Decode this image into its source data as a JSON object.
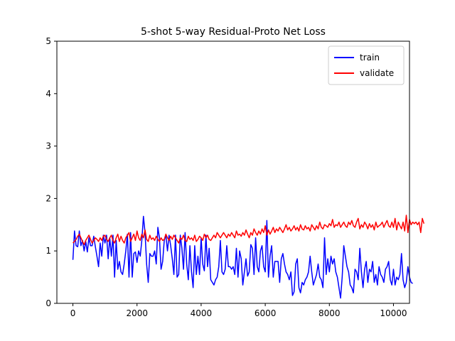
{
  "chart_data": {
    "type": "line",
    "title": "5-shot 5-way Residual-Proto Net Loss",
    "xlabel": "",
    "ylabel": "",
    "xlim": [
      -500,
      10500
    ],
    "ylim": [
      0,
      5
    ],
    "xticks": [
      0,
      2000,
      4000,
      6000,
      8000,
      10000
    ],
    "yticks": [
      0,
      1,
      2,
      3,
      4,
      5
    ],
    "grid": false,
    "legend_position": "top-right",
    "x_step": 50,
    "series": [
      {
        "name": "train",
        "color": "#0000ff",
        "values": [
          0.83,
          1.38,
          1.1,
          1.08,
          1.38,
          1.1,
          1.2,
          1.0,
          1.18,
          0.98,
          1.25,
          1.1,
          1.1,
          1.28,
          1.08,
          0.9,
          0.7,
          1.15,
          0.9,
          1.3,
          1.15,
          1.3,
          0.85,
          1.25,
          0.9,
          1.3,
          0.5,
          1.2,
          0.65,
          0.8,
          0.6,
          0.55,
          0.75,
          1.0,
          1.32,
          0.5,
          1.35,
          0.5,
          0.95,
          0.98,
          0.78,
          1.0,
          0.9,
          1.2,
          1.66,
          1.35,
          0.75,
          0.4,
          0.95,
          0.9,
          0.9,
          1.0,
          0.75,
          1.45,
          1.25,
          0.65,
          0.8,
          1.2,
          1.3,
          1.0,
          1.3,
          1.1,
          0.85,
          0.55,
          1.3,
          0.5,
          0.55,
          1.3,
          1.05,
          0.65,
          1.35,
          0.75,
          0.45,
          1.1,
          0.6,
          0.3,
          1.1,
          0.55,
          0.9,
          0.55,
          1.25,
          0.75,
          0.62,
          1.3,
          0.7,
          1.05,
          0.45,
          0.4,
          0.35,
          0.45,
          0.5,
          0.7,
          1.2,
          0.6,
          0.55,
          0.65,
          1.1,
          0.7,
          0.7,
          0.65,
          0.7,
          0.55,
          1.05,
          0.5,
          1.0,
          0.85,
          0.35,
          0.6,
          0.85,
          0.52,
          0.6,
          1.12,
          1.05,
          0.55,
          1.25,
          0.7,
          0.6,
          1.0,
          1.1,
          0.7,
          0.6,
          1.58,
          0.5,
          0.9,
          1.1,
          0.5,
          0.8,
          0.8,
          0.8,
          0.4,
          0.85,
          0.95,
          0.75,
          0.6,
          0.55,
          0.45,
          0.6,
          0.15,
          0.22,
          0.75,
          0.85,
          0.3,
          0.2,
          0.4,
          0.35,
          0.45,
          0.5,
          0.6,
          0.9,
          0.6,
          0.35,
          0.45,
          0.55,
          0.75,
          0.5,
          0.45,
          0.3,
          1.25,
          0.55,
          0.85,
          0.6,
          0.9,
          0.75,
          0.85,
          0.6,
          0.5,
          0.3,
          0.1,
          0.5,
          1.1,
          0.9,
          0.7,
          0.6,
          0.35,
          0.3,
          0.2,
          0.65,
          0.6,
          0.45,
          1.05,
          0.6,
          0.3,
          0.65,
          0.8,
          0.4,
          0.65,
          0.6,
          0.8,
          0.4,
          0.55,
          0.35,
          0.7,
          0.55,
          0.5,
          0.4,
          0.65,
          0.7,
          0.8,
          0.45,
          0.35,
          0.65,
          0.35,
          0.5,
          0.45,
          0.55,
          0.95,
          0.45,
          0.3,
          0.4,
          0.7,
          0.5,
          0.4,
          0.38
        ],
        "x_start": 0
      },
      {
        "name": "validate",
        "color": "#ff0000",
        "values": [
          1.15,
          1.18,
          1.22,
          1.28,
          1.32,
          1.25,
          1.18,
          1.12,
          1.2,
          1.25,
          1.3,
          1.22,
          1.15,
          1.2,
          1.25,
          1.22,
          1.18,
          1.25,
          1.2,
          1.28,
          1.3,
          1.22,
          1.18,
          1.25,
          1.3,
          1.2,
          1.15,
          1.25,
          1.32,
          1.18,
          1.28,
          1.2,
          1.15,
          1.25,
          1.3,
          1.35,
          1.18,
          1.25,
          1.32,
          1.2,
          1.38,
          1.25,
          1.2,
          1.32,
          1.25,
          1.4,
          1.22,
          1.18,
          1.3,
          1.22,
          1.25,
          1.2,
          1.28,
          1.22,
          1.18,
          1.25,
          1.2,
          1.22,
          1.32,
          1.25,
          1.2,
          1.28,
          1.22,
          1.3,
          1.25,
          1.2,
          1.15,
          1.25,
          1.22,
          1.3,
          1.2,
          1.18,
          1.28,
          1.22,
          1.25,
          1.2,
          1.3,
          1.18,
          1.22,
          1.28,
          1.25,
          1.2,
          1.32,
          1.25,
          1.3,
          1.22,
          1.2,
          1.25,
          1.3,
          1.25,
          1.35,
          1.3,
          1.25,
          1.3,
          1.35,
          1.3,
          1.25,
          1.32,
          1.28,
          1.35,
          1.3,
          1.25,
          1.38,
          1.3,
          1.32,
          1.28,
          1.35,
          1.3,
          1.4,
          1.32,
          1.25,
          1.35,
          1.3,
          1.42,
          1.35,
          1.3,
          1.38,
          1.32,
          1.42,
          1.35,
          1.48,
          1.3,
          1.4,
          1.32,
          1.38,
          1.45,
          1.35,
          1.42,
          1.38,
          1.45,
          1.4,
          1.35,
          1.42,
          1.5,
          1.4,
          1.45,
          1.38,
          1.42,
          1.48,
          1.4,
          1.45,
          1.38,
          1.5,
          1.42,
          1.4,
          1.48,
          1.42,
          1.45,
          1.38,
          1.5,
          1.45,
          1.4,
          1.48,
          1.42,
          1.55,
          1.45,
          1.42,
          1.5,
          1.48,
          1.45,
          1.52,
          1.48,
          1.6,
          1.45,
          1.5,
          1.48,
          1.55,
          1.45,
          1.5,
          1.55,
          1.48,
          1.45,
          1.55,
          1.5,
          1.58,
          1.48,
          1.45,
          1.55,
          1.62,
          1.42,
          1.5,
          1.45,
          1.55,
          1.5,
          1.42,
          1.52,
          1.45,
          1.5,
          1.4,
          1.55,
          1.45,
          1.48,
          1.5,
          1.55,
          1.45,
          1.52,
          1.58,
          1.48,
          1.45,
          1.55,
          1.45,
          1.62,
          1.4,
          1.55,
          1.48,
          1.42,
          1.55,
          1.38,
          1.68,
          1.35,
          1.6,
          1.5,
          1.55,
          1.52,
          1.55,
          1.5,
          1.55,
          1.35,
          1.62,
          1.52
        ],
        "x_start": 0
      }
    ]
  }
}
